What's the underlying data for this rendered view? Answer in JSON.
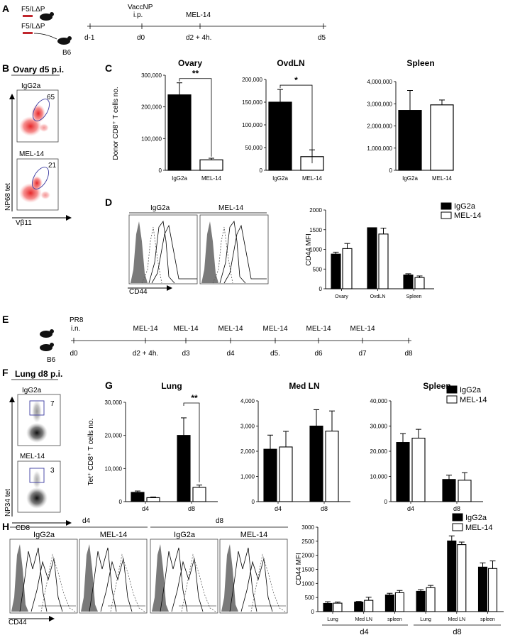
{
  "figure": {
    "panel_letters": [
      "A",
      "B",
      "C",
      "D",
      "E",
      "F",
      "G",
      "H"
    ],
    "panelA": {
      "mouse1": "F5/LΔP",
      "mouse2": "F5/LΔP",
      "mouse3": "B6",
      "treatment": "VaccNP",
      "route": "i.p.",
      "antibody": "MEL-14",
      "timepoints": [
        "d-1",
        "d0",
        "d2 + 4h.",
        "d5"
      ]
    },
    "panelB": {
      "title": "Ovary d5 p.i.",
      "top_label": "IgG2a",
      "top_value": "65",
      "bottom_label": "MEL-14",
      "bottom_value": "21",
      "ylabel": "NP68 tet",
      "xlabel": "Vβ11"
    },
    "panelD": {
      "hist1_label": "IgG2a",
      "hist2_label": "MEL-14",
      "xlabel": "CD44"
    },
    "panelE": {
      "treatment": "PR8",
      "route": "i.n.",
      "mouse": "B6",
      "timepoints": [
        "d0",
        "d2 + 4h.",
        "d3",
        "d4",
        "d5.",
        "d6",
        "d7",
        "d8"
      ],
      "injections": [
        "MEL-14",
        "MEL-14",
        "MEL-14",
        "MEL-14",
        "MEL-14",
        "MEL-14"
      ]
    },
    "panelF": {
      "title": "Lung d8 p.i.",
      "top_label": "IgG2a",
      "top_value": "7",
      "bottom_label": "MEL-14",
      "bottom_value": "3",
      "ylabel": "NP34 tet",
      "xlabel": "CD8"
    },
    "panelH": {
      "day1": "d4",
      "day2": "d8",
      "hist_labels": [
        "IgG2a",
        "MEL-14",
        "IgG2a",
        "MEL-14"
      ],
      "xlabel": "CD44"
    }
  },
  "colors": {
    "filled_bar": "#000000",
    "open_bar": "#ffffff",
    "dot_plot_red": "#e41a1c",
    "gate": "#3a3aa0",
    "histogram_fill": "#7a7a7a"
  },
  "chart_data": [
    {
      "id": "C-ovary",
      "type": "bar",
      "title": "Ovary",
      "ylabel": "Donor CD8⁺ T cells no.",
      "categories": [
        "IgG2a",
        "MEL-14"
      ],
      "values": [
        238000,
        33000
      ],
      "errors": [
        38000,
        5000
      ],
      "ylim": [
        0,
        300000
      ],
      "yticks": [
        "0",
        "100,000",
        "200,000",
        "300,000"
      ],
      "yticks_values": [
        0,
        100000,
        200000,
        300000
      ],
      "significance": "**"
    },
    {
      "id": "C-ovdln",
      "type": "bar",
      "title": "OvdLN",
      "categories": [
        "IgG2a",
        "MEL-14"
      ],
      "values": [
        150000,
        30000
      ],
      "errors": [
        28000,
        15000
      ],
      "ylim": [
        0,
        200000
      ],
      "yticks": [
        "0",
        "50,000",
        "100,000",
        "150,000",
        "200,000"
      ],
      "yticks_values": [
        0,
        50000,
        100000,
        150000,
        200000
      ],
      "significance": "*"
    },
    {
      "id": "C-spleen",
      "type": "bar",
      "title": "Spleen",
      "categories": [
        "IgG2a",
        "MEL-14"
      ],
      "values": [
        2700000,
        2950000
      ],
      "errors": [
        900000,
        220000
      ],
      "ylim": [
        0,
        4000000
      ],
      "yticks": [
        "0",
        "1,000,000",
        "2,000,000",
        "3,000,000",
        "4,000,000"
      ],
      "yticks_values": [
        0,
        1000000,
        2000000,
        3000000,
        4000000
      ]
    },
    {
      "id": "D-mfi",
      "type": "bar",
      "ylabel": "CD44 MFI",
      "categories": [
        "Ovary",
        "OvdLN",
        "Spleen"
      ],
      "series": [
        {
          "name": "IgG2a",
          "values": [
            880,
            1550,
            350
          ],
          "errors": [
            50,
            0,
            30
          ]
        },
        {
          "name": "MEL-14",
          "values": [
            1020,
            1390,
            285
          ],
          "errors": [
            130,
            150,
            40
          ]
        }
      ],
      "ylim": [
        0,
        2000
      ],
      "yticks": [
        "0",
        "500",
        "1000",
        "1500",
        "2000"
      ],
      "yticks_values": [
        0,
        500,
        1000,
        1500,
        2000
      ],
      "legend": "top-right"
    },
    {
      "id": "G-lung",
      "type": "bar",
      "title": "Lung",
      "ylabel": "Tet⁺ CD8⁺ T cells no.",
      "categories": [
        "d4",
        "d8"
      ],
      "series": [
        {
          "name": "IgG2a",
          "values": [
            2800,
            20000
          ],
          "errors": [
            400,
            5300
          ]
        },
        {
          "name": "MEL-14",
          "values": [
            1200,
            4300
          ],
          "errors": [
            200,
            700
          ]
        }
      ],
      "ylim": [
        0,
        30000
      ],
      "yticks": [
        "0",
        "10,000",
        "20,000",
        "30,000"
      ],
      "yticks_values": [
        0,
        10000,
        20000,
        30000
      ],
      "significance": "**"
    },
    {
      "id": "G-medln",
      "type": "bar",
      "title": "Med LN",
      "categories": [
        "d4",
        "d8"
      ],
      "series": [
        {
          "name": "IgG2a",
          "values": [
            2080,
            3000
          ],
          "errors": [
            560,
            650
          ]
        },
        {
          "name": "MEL-14",
          "values": [
            2170,
            2800
          ],
          "errors": [
            620,
            800
          ]
        }
      ],
      "ylim": [
        0,
        4000
      ],
      "yticks": [
        "0",
        "1,000",
        "2,000",
        "3,000",
        "4,000"
      ],
      "yticks_values": [
        0,
        1000,
        2000,
        3000,
        4000
      ]
    },
    {
      "id": "G-spleen",
      "type": "bar",
      "title": "Spleen",
      "categories": [
        "d4",
        "d8"
      ],
      "series": [
        {
          "name": "IgG2a",
          "values": [
            23500,
            8800
          ],
          "errors": [
            3500,
            1700
          ]
        },
        {
          "name": "MEL-14",
          "values": [
            25200,
            8500
          ],
          "errors": [
            3500,
            3000
          ]
        }
      ],
      "ylim": [
        0,
        40000
      ],
      "yticks": [
        "0",
        "10,000",
        "20,000",
        "30,000",
        "40,000"
      ],
      "yticks_values": [
        0,
        10000,
        20000,
        30000,
        40000
      ],
      "legend": "top-right"
    },
    {
      "id": "H-mfi",
      "type": "bar",
      "ylabel": "CD44 MFI",
      "categories": [
        "Lung",
        "Med LN",
        "spleen",
        "Lung",
        "Med LN",
        "spleen"
      ],
      "groups": [
        "d4",
        "d8"
      ],
      "series": [
        {
          "name": "IgG2a",
          "values": [
            290,
            340,
            590,
            720,
            2510,
            1580
          ],
          "errors": [
            60,
            20,
            60,
            60,
            180,
            150
          ]
        },
        {
          "name": "MEL-14",
          "values": [
            300,
            400,
            670,
            850,
            2380,
            1530
          ],
          "errors": [
            40,
            110,
            80,
            80,
            90,
            270
          ]
        }
      ],
      "ylim": [
        0,
        3000
      ],
      "yticks": [
        "0",
        "500",
        "1000",
        "1500",
        "2000",
        "2500",
        "3000"
      ],
      "yticks_values": [
        0,
        500,
        1000,
        1500,
        2000,
        2500,
        3000
      ],
      "legend": "top-right"
    }
  ]
}
